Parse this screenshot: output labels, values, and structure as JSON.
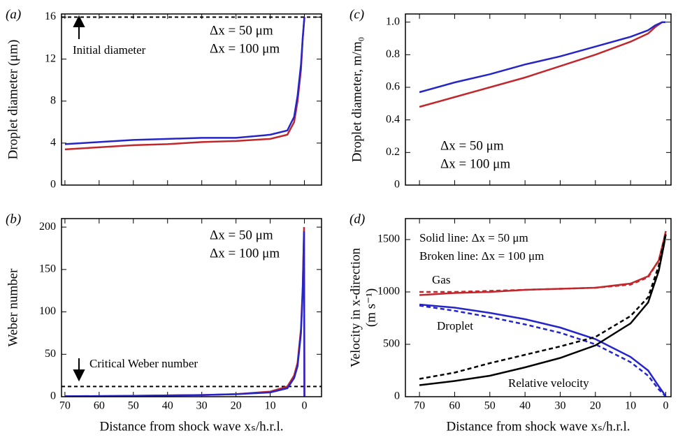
{
  "chart_data": [
    {
      "type": "line",
      "panel_label": "(a)",
      "ylabel": "Droplet diameter (μm)",
      "x": [
        70,
        60,
        50,
        40,
        30,
        20,
        10,
        5,
        3,
        2,
        1,
        0.5,
        0
      ],
      "series": [
        {
          "name": "Δx = 50 μm",
          "color": "#c0282d",
          "values": [
            3.4,
            3.6,
            3.8,
            3.9,
            4.1,
            4.2,
            4.4,
            4.8,
            6,
            8,
            11,
            14,
            16
          ]
        },
        {
          "name": "Δx = 100 μm",
          "color": "#2525c8",
          "values": [
            3.9,
            4.1,
            4.3,
            4.4,
            4.5,
            4.5,
            4.8,
            5.2,
            6.5,
            8.5,
            11.5,
            14,
            16
          ]
        }
      ],
      "xlim": [
        71,
        -5
      ],
      "ylim": [
        0,
        16.3
      ],
      "xticks": [
        70,
        60,
        50,
        40,
        30,
        20,
        10,
        0
      ],
      "show_xtick_labels": false,
      "yticks": [
        0,
        4,
        8,
        12,
        16
      ],
      "legend": "upper right",
      "hlines": [
        16
      ],
      "annotations": [
        {
          "text": "Initial diameter",
          "color": "#000"
        }
      ]
    },
    {
      "type": "line",
      "panel_label": "(b)",
      "ylabel": "Weber number",
      "xlabel": "Distance from shock wave xₛ/h.r.l.",
      "x": [
        70,
        50,
        30,
        20,
        10,
        5,
        3,
        2,
        1,
        0.5,
        0.1,
        0
      ],
      "series": [
        {
          "name": "Δx = 50 μm",
          "color": "#c0282d",
          "values": [
            0.5,
            1,
            2,
            3,
            6,
            12,
            25,
            40,
            80,
            130,
            200,
            0
          ]
        },
        {
          "name": "Δx = 100 μm",
          "color": "#2525c8",
          "values": [
            0.5,
            1,
            2,
            3,
            5,
            10,
            22,
            36,
            75,
            125,
            195,
            0
          ]
        }
      ],
      "xlim": [
        71,
        -5
      ],
      "ylim": [
        0,
        210
      ],
      "xticks": [
        70,
        60,
        50,
        40,
        30,
        20,
        10,
        0
      ],
      "show_xtick_labels": true,
      "yticks": [
        0,
        50,
        100,
        150,
        200
      ],
      "legend": "upper right",
      "hlines": [
        12
      ],
      "annotations": [
        {
          "text": "Critical Weber number",
          "color": "#000"
        }
      ]
    },
    {
      "type": "line",
      "panel_label": "(c)",
      "ylabel": "Droplet diameter, m/m₀",
      "x": [
        70,
        60,
        50,
        40,
        30,
        20,
        10,
        5,
        3,
        1,
        0
      ],
      "series": [
        {
          "name": "Δx = 50 μm",
          "color": "#c0282d",
          "values": [
            0.48,
            0.54,
            0.6,
            0.66,
            0.73,
            0.8,
            0.88,
            0.93,
            0.97,
            1,
            1
          ]
        },
        {
          "name": "Δx = 100 μm",
          "color": "#2525c8",
          "values": [
            0.57,
            0.63,
            0.68,
            0.74,
            0.79,
            0.85,
            0.91,
            0.95,
            0.98,
            1,
            1
          ]
        }
      ],
      "xlim": [
        74,
        -1.5
      ],
      "ylim": [
        0,
        1.05
      ],
      "xticks": [
        70,
        60,
        50,
        40,
        30,
        20,
        10,
        0
      ],
      "show_xtick_labels": false,
      "yticks": [
        0,
        0.2,
        0.4,
        0.6,
        0.8,
        {
          "value": 1,
          "label": "1.0"
        }
      ],
      "legend": "lower left",
      "hlines": [],
      "annotations": []
    },
    {
      "type": "line",
      "panel_label": "(d)",
      "ylabel": "Velocity in x-direction",
      "ylabel2": "(m s⁻¹)",
      "xlabel": "Distance from shock wave xₛ/h.r.l.",
      "x": [
        70,
        60,
        50,
        40,
        30,
        20,
        10,
        5,
        2,
        0.5,
        0
      ],
      "series": [
        {
          "color": "#c0282d",
          "style": "solid",
          "values": [
            970,
            990,
            1000,
            1020,
            1030,
            1040,
            1080,
            1150,
            1300,
            1500,
            1580
          ]
        },
        {
          "color": "#c0282d",
          "style": "dashed",
          "values": [
            1000,
            1000,
            1010,
            1020,
            1030,
            1040,
            1070,
            1140,
            1300,
            1500,
            1580
          ]
        },
        {
          "color": "#2525c8",
          "style": "solid",
          "values": [
            880,
            850,
            800,
            740,
            660,
            550,
            380,
            250,
            100,
            30,
            0
          ]
        },
        {
          "color": "#2525c8",
          "style": "dashed",
          "values": [
            870,
            820,
            760,
            690,
            610,
            500,
            330,
            200,
            70,
            20,
            0
          ]
        },
        {
          "color": "#000000",
          "style": "solid",
          "values": [
            110,
            150,
            200,
            280,
            370,
            490,
            700,
            900,
            1200,
            1450,
            1550
          ]
        },
        {
          "color": "#000000",
          "style": "dashed",
          "values": [
            170,
            230,
            320,
            400,
            480,
            570,
            770,
            950,
            1250,
            1480,
            1560
          ]
        }
      ],
      "xlim": [
        74,
        -1.5
      ],
      "ylim": [
        0,
        1700
      ],
      "xticks": [
        70,
        60,
        50,
        40,
        30,
        20,
        10,
        0
      ],
      "show_xtick_labels": true,
      "yticks": [
        0,
        500,
        1000,
        1500
      ],
      "hlines": [],
      "annotations": [
        {
          "text": "Solid line: Δx = 50 μm",
          "color": "#000"
        },
        {
          "text": "Broken line: Δx = 100 μm",
          "color": "#000"
        },
        {
          "text": "Gas",
          "color": "#c0282d"
        },
        {
          "text": "Droplet",
          "color": "#2525c8"
        },
        {
          "text": "Relative velocity",
          "color": "#000"
        }
      ]
    }
  ]
}
